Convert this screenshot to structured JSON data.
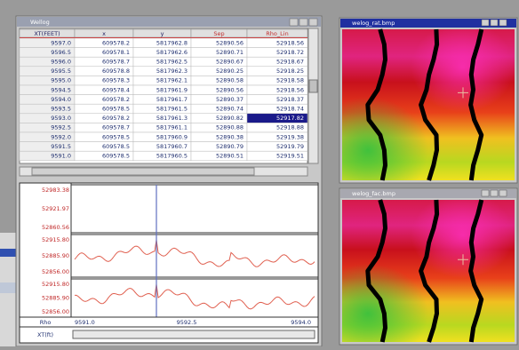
{
  "table_window": {
    "title": "Wellog",
    "columns": [
      "XT(FEET)",
      "x",
      "y",
      "Sep",
      "Rho_Lin"
    ],
    "rows": [
      [
        "9597.0",
        "609578.2",
        "5817962.8",
        "52890.56",
        "52918.56"
      ],
      [
        "9596.5",
        "609578.1",
        "5817962.6",
        "52890.71",
        "52918.72"
      ],
      [
        "9596.0",
        "609578.7",
        "5817962.5",
        "52890.67",
        "52918.67"
      ],
      [
        "9595.5",
        "609578.8",
        "5817962.3",
        "52890.25",
        "52918.25"
      ],
      [
        "9595.0",
        "609578.3",
        "5817962.1",
        "52890.58",
        "52918.58"
      ],
      [
        "9594.5",
        "609578.4",
        "5817961.9",
        "52890.56",
        "52918.56"
      ],
      [
        "9594.0",
        "609578.2",
        "5817961.7",
        "52890.37",
        "52918.37"
      ],
      [
        "9593.5",
        "609578.5",
        "5817961.5",
        "52890.74",
        "52918.74"
      ],
      [
        "9593.0",
        "609578.2",
        "5817961.3",
        "52890.82",
        "52917.82"
      ],
      [
        "9592.5",
        "609578.7",
        "5817961.1",
        "52890.88",
        "52918.88"
      ],
      [
        "9592.0",
        "609578.5",
        "5817960.9",
        "52890.38",
        "52919.38"
      ],
      [
        "9591.5",
        "609578.5",
        "5817960.7",
        "52890.79",
        "52919.79"
      ],
      [
        "9591.0",
        "609578.5",
        "5817960.5",
        "52890.51",
        "52919.51"
      ]
    ]
  },
  "log_view": {
    "track1_labels": [
      "52983.38",
      "52921.97",
      "52860.56"
    ],
    "track2_labels": [
      "52915.80",
      "52885.90",
      "52856.00"
    ],
    "track3_labels": [
      "52915.80",
      "52885.90",
      "52856.00"
    ],
    "footer_label": "Rho",
    "footer_ticks": [
      "9591.0",
      "9592.5",
      "9594.0"
    ],
    "footer_unit": "XT(ft)"
  },
  "image_windows": [
    {
      "title": "welog_rat.bmp"
    },
    {
      "title": "welog_fac.bmp"
    }
  ]
}
